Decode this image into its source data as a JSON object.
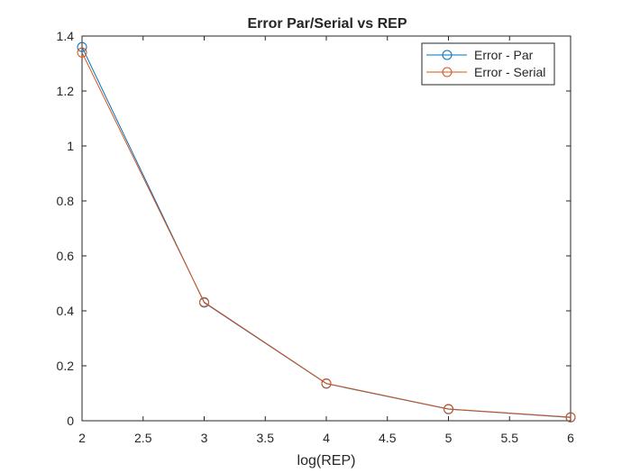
{
  "chart_data": {
    "type": "line",
    "title": "Error Par/Serial vs REP",
    "xlabel": "log(REP)",
    "ylabel": "",
    "xlim": [
      2,
      6
    ],
    "ylim": [
      0,
      1.4
    ],
    "xticks": [
      2,
      2.5,
      3,
      3.5,
      4,
      4.5,
      5,
      5.5,
      6
    ],
    "yticks": [
      0,
      0.2,
      0.4,
      0.6,
      0.8,
      1,
      1.2,
      1.4
    ],
    "grid": false,
    "legend_position": "top-right",
    "x": [
      2,
      3,
      4,
      5,
      6
    ],
    "series": [
      {
        "name": "Error - Par",
        "color": "#0072BD",
        "marker": "circle",
        "values": [
          1.36,
          0.43,
          0.135,
          0.042,
          0.012
        ]
      },
      {
        "name": "Error - Serial",
        "color": "#D95319",
        "marker": "circle",
        "values": [
          1.34,
          0.432,
          0.136,
          0.043,
          0.013
        ]
      }
    ]
  }
}
